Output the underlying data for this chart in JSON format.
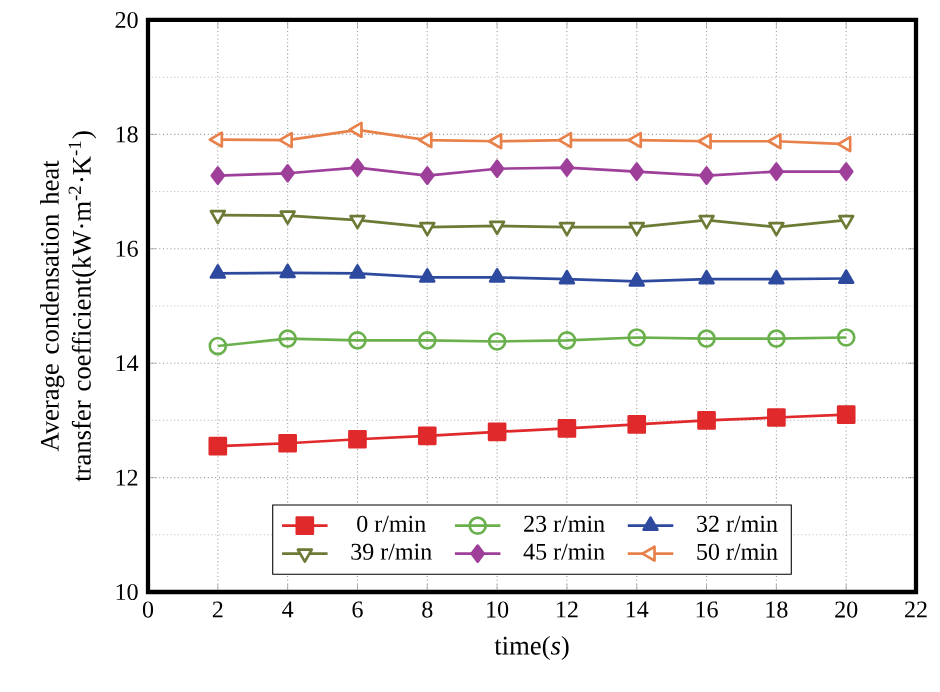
{
  "chart_data": {
    "type": "line",
    "xlabel": "time(*s*)",
    "ylabel": "Average condensation heat transfer coefficient(kW·m$^{-2}$·K$^{-1}$)",
    "x": [
      2,
      4,
      6,
      8,
      10,
      12,
      14,
      16,
      18,
      20
    ],
    "xlim": [
      0,
      22
    ],
    "xticks": [
      0,
      2,
      4,
      6,
      8,
      10,
      12,
      14,
      16,
      18,
      20,
      22
    ],
    "ylim": [
      10,
      20
    ],
    "yticks": [
      10,
      12,
      14,
      16,
      18,
      20
    ],
    "grid": true,
    "legend": "bottom",
    "series": [
      {
        "name": "0 r/min",
        "color": "#e0292b",
        "marker": "square",
        "values": [
          12.55,
          12.6,
          12.67,
          12.73,
          12.8,
          12.86,
          12.93,
          13.0,
          13.05,
          13.1
        ]
      },
      {
        "name": "23 r/min",
        "color": "#6ab04c",
        "marker": "circle",
        "values": [
          14.3,
          14.43,
          14.4,
          14.4,
          14.38,
          14.4,
          14.45,
          14.43,
          14.43,
          14.45
        ]
      },
      {
        "name": "32 r/min",
        "color": "#2e4a9e",
        "marker": "triangle",
        "values": [
          15.57,
          15.58,
          15.57,
          15.5,
          15.5,
          15.47,
          15.43,
          15.47,
          15.47,
          15.48
        ]
      },
      {
        "name": "39 r/min",
        "color": "#6b7a35",
        "marker": "triangle-down",
        "values": [
          16.59,
          16.58,
          16.5,
          16.38,
          16.4,
          16.38,
          16.38,
          16.5,
          16.38,
          16.5
        ]
      },
      {
        "name": "45 r/min",
        "color": "#9e3f9a",
        "marker": "diamond",
        "values": [
          17.28,
          17.32,
          17.42,
          17.28,
          17.4,
          17.42,
          17.35,
          17.28,
          17.35,
          17.35
        ]
      },
      {
        "name": "50 r/min",
        "color": "#e8804a",
        "marker": "triangle-left",
        "values": [
          17.91,
          17.9,
          18.08,
          17.9,
          17.88,
          17.9,
          17.9,
          17.88,
          17.88,
          17.83
        ]
      }
    ]
  }
}
